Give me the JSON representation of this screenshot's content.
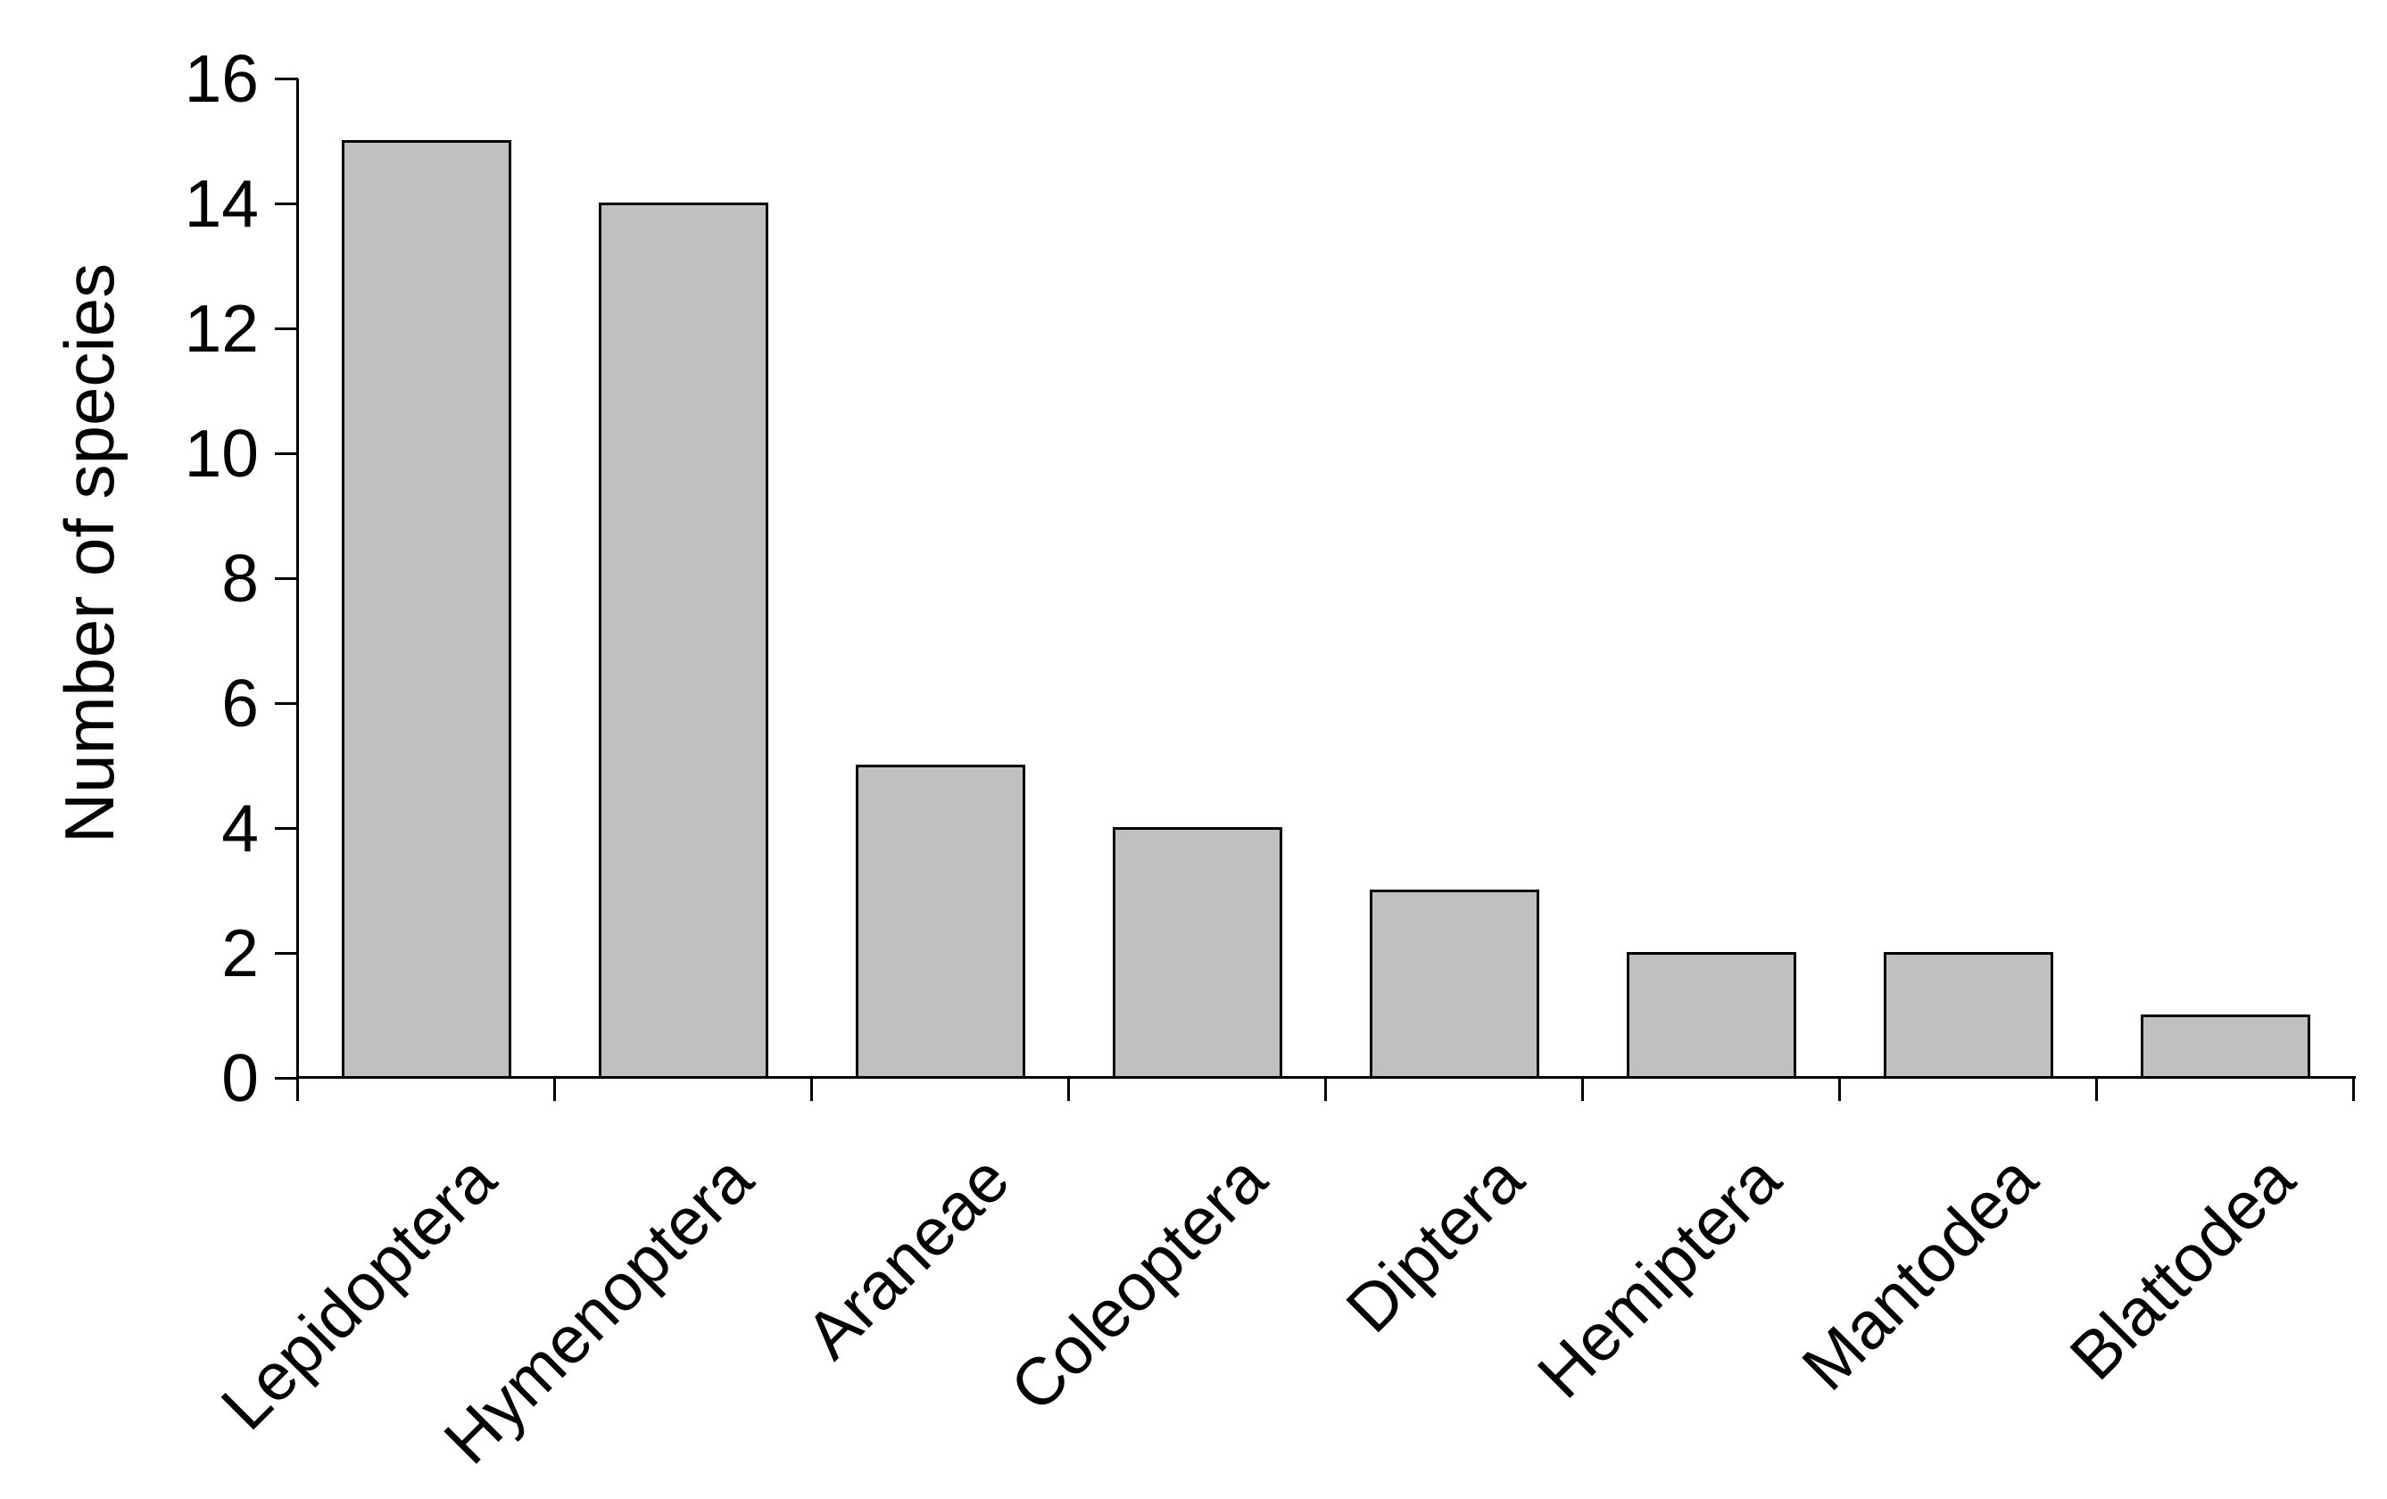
{
  "chart_data": {
    "type": "bar",
    "categories": [
      "Lepidoptera",
      "Hymenoptera",
      "Araneae",
      "Coleoptera",
      "Diptera",
      "Hemiptera",
      "Mantodea",
      "Blattodea"
    ],
    "values": [
      15,
      14,
      5,
      4,
      3,
      2,
      2,
      1
    ],
    "title": "",
    "xlabel": "",
    "ylabel": "Number of species",
    "ylim": [
      0,
      16
    ],
    "yticks": [
      0,
      2,
      4,
      6,
      8,
      10,
      12,
      14,
      16
    ],
    "grid": false,
    "legend": "none",
    "bar_fill": "#c0c0c0",
    "bar_stroke": "#000000",
    "axis_color": "#000000",
    "background": "#ffffff"
  }
}
